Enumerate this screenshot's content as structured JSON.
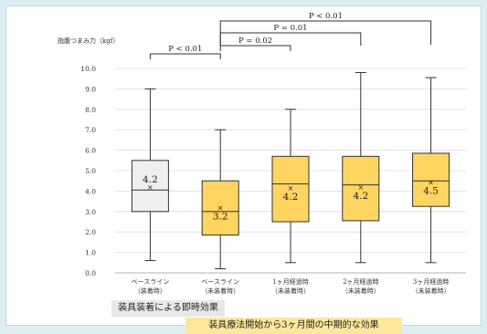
{
  "chart_data": {
    "type": "box",
    "ylabel": "指腹つまみ力（kgf）",
    "ylim": [
      0,
      10
    ],
    "yticks": [
      "0.0",
      "1.0",
      "2.0",
      "3.0",
      "4.0",
      "5.0",
      "6.0",
      "7.0",
      "8.0",
      "9.0",
      "10.0"
    ],
    "grid": true,
    "categories": [
      {
        "line1": "ベースライン",
        "line2": "（装着時）"
      },
      {
        "line1": "ベースライン",
        "line2": "（未装着時）"
      },
      {
        "line1": "1ヶ月経過時",
        "line2": "（未装着時）"
      },
      {
        "line1": "2ヶ月経過時",
        "line2": "（未装着時）"
      },
      {
        "line1": "3ヶ月経過時",
        "line2": "（未装着時）"
      }
    ],
    "boxes": [
      {
        "min": 0.6,
        "q1": 3.0,
        "median": 4.05,
        "q3": 5.5,
        "max": 9.0,
        "mean": 4.2,
        "mean_label": "4.2",
        "fill": "#efefef"
      },
      {
        "min": 0.2,
        "q1": 1.85,
        "median": 3.0,
        "q3": 4.5,
        "max": 7.0,
        "mean": 3.2,
        "mean_label": "3.2",
        "fill": "#fdd560"
      },
      {
        "min": 0.5,
        "q1": 2.5,
        "median": 4.35,
        "q3": 5.7,
        "max": 8.0,
        "mean": 4.15,
        "mean_label": "4.2",
        "fill": "#fdd560"
      },
      {
        "min": 0.5,
        "q1": 2.55,
        "median": 4.3,
        "q3": 5.7,
        "max": 9.8,
        "mean": 4.2,
        "mean_label": "4.2",
        "fill": "#fdd560"
      },
      {
        "min": 0.5,
        "q1": 3.25,
        "median": 4.5,
        "q3": 5.85,
        "max": 9.55,
        "mean": 4.45,
        "mean_label": "4.5",
        "fill": "#fdd560"
      }
    ],
    "significance": [
      {
        "from": 0,
        "to": 1,
        "label": "P < 0.01"
      },
      {
        "from": 1,
        "to": 2,
        "label": "P = 0.02"
      },
      {
        "from": 1,
        "to": 3,
        "label": "P = 0.01"
      },
      {
        "from": 1,
        "to": 4,
        "label": "P < 0.01"
      }
    ]
  },
  "captions": {
    "immediate": "装具装着による即時効果",
    "midterm": "装具療法開始から3ヶ月間の中期的な効果"
  },
  "colors": {
    "background": "#ddeef3",
    "box_baseline_worn": "#efefef",
    "box_not_worn": "#fdd560",
    "caption_immediate_bg": "#e8e8e8",
    "caption_midterm_bg": "#fde89a"
  }
}
